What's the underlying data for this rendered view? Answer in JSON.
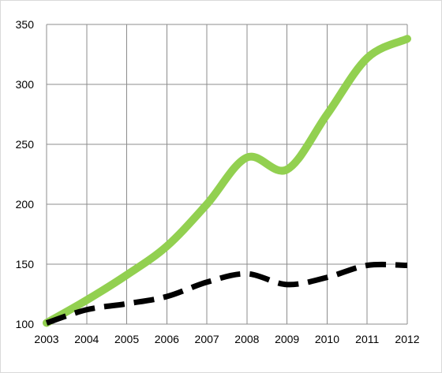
{
  "chart_data": {
    "type": "line",
    "title": "",
    "xlabel": "",
    "ylabel": "",
    "x": [
      "2003",
      "2004",
      "2005",
      "2006",
      "2007",
      "2008",
      "2009",
      "2010",
      "2011",
      "2012"
    ],
    "ylim": [
      100,
      350
    ],
    "yticks": [
      100,
      150,
      200,
      250,
      300,
      350
    ],
    "grid": true,
    "legend": "none",
    "smooth": true,
    "series": [
      {
        "values": [
          101,
          120,
          141,
          165,
          200,
          239,
          229,
          275,
          322,
          338
        ],
        "color": "#92d050",
        "line_style": "solid"
      },
      {
        "values": [
          101,
          112,
          117,
          123,
          135,
          142,
          133,
          139,
          149,
          149
        ],
        "color": "#000000",
        "line_style": "dashed"
      }
    ]
  }
}
